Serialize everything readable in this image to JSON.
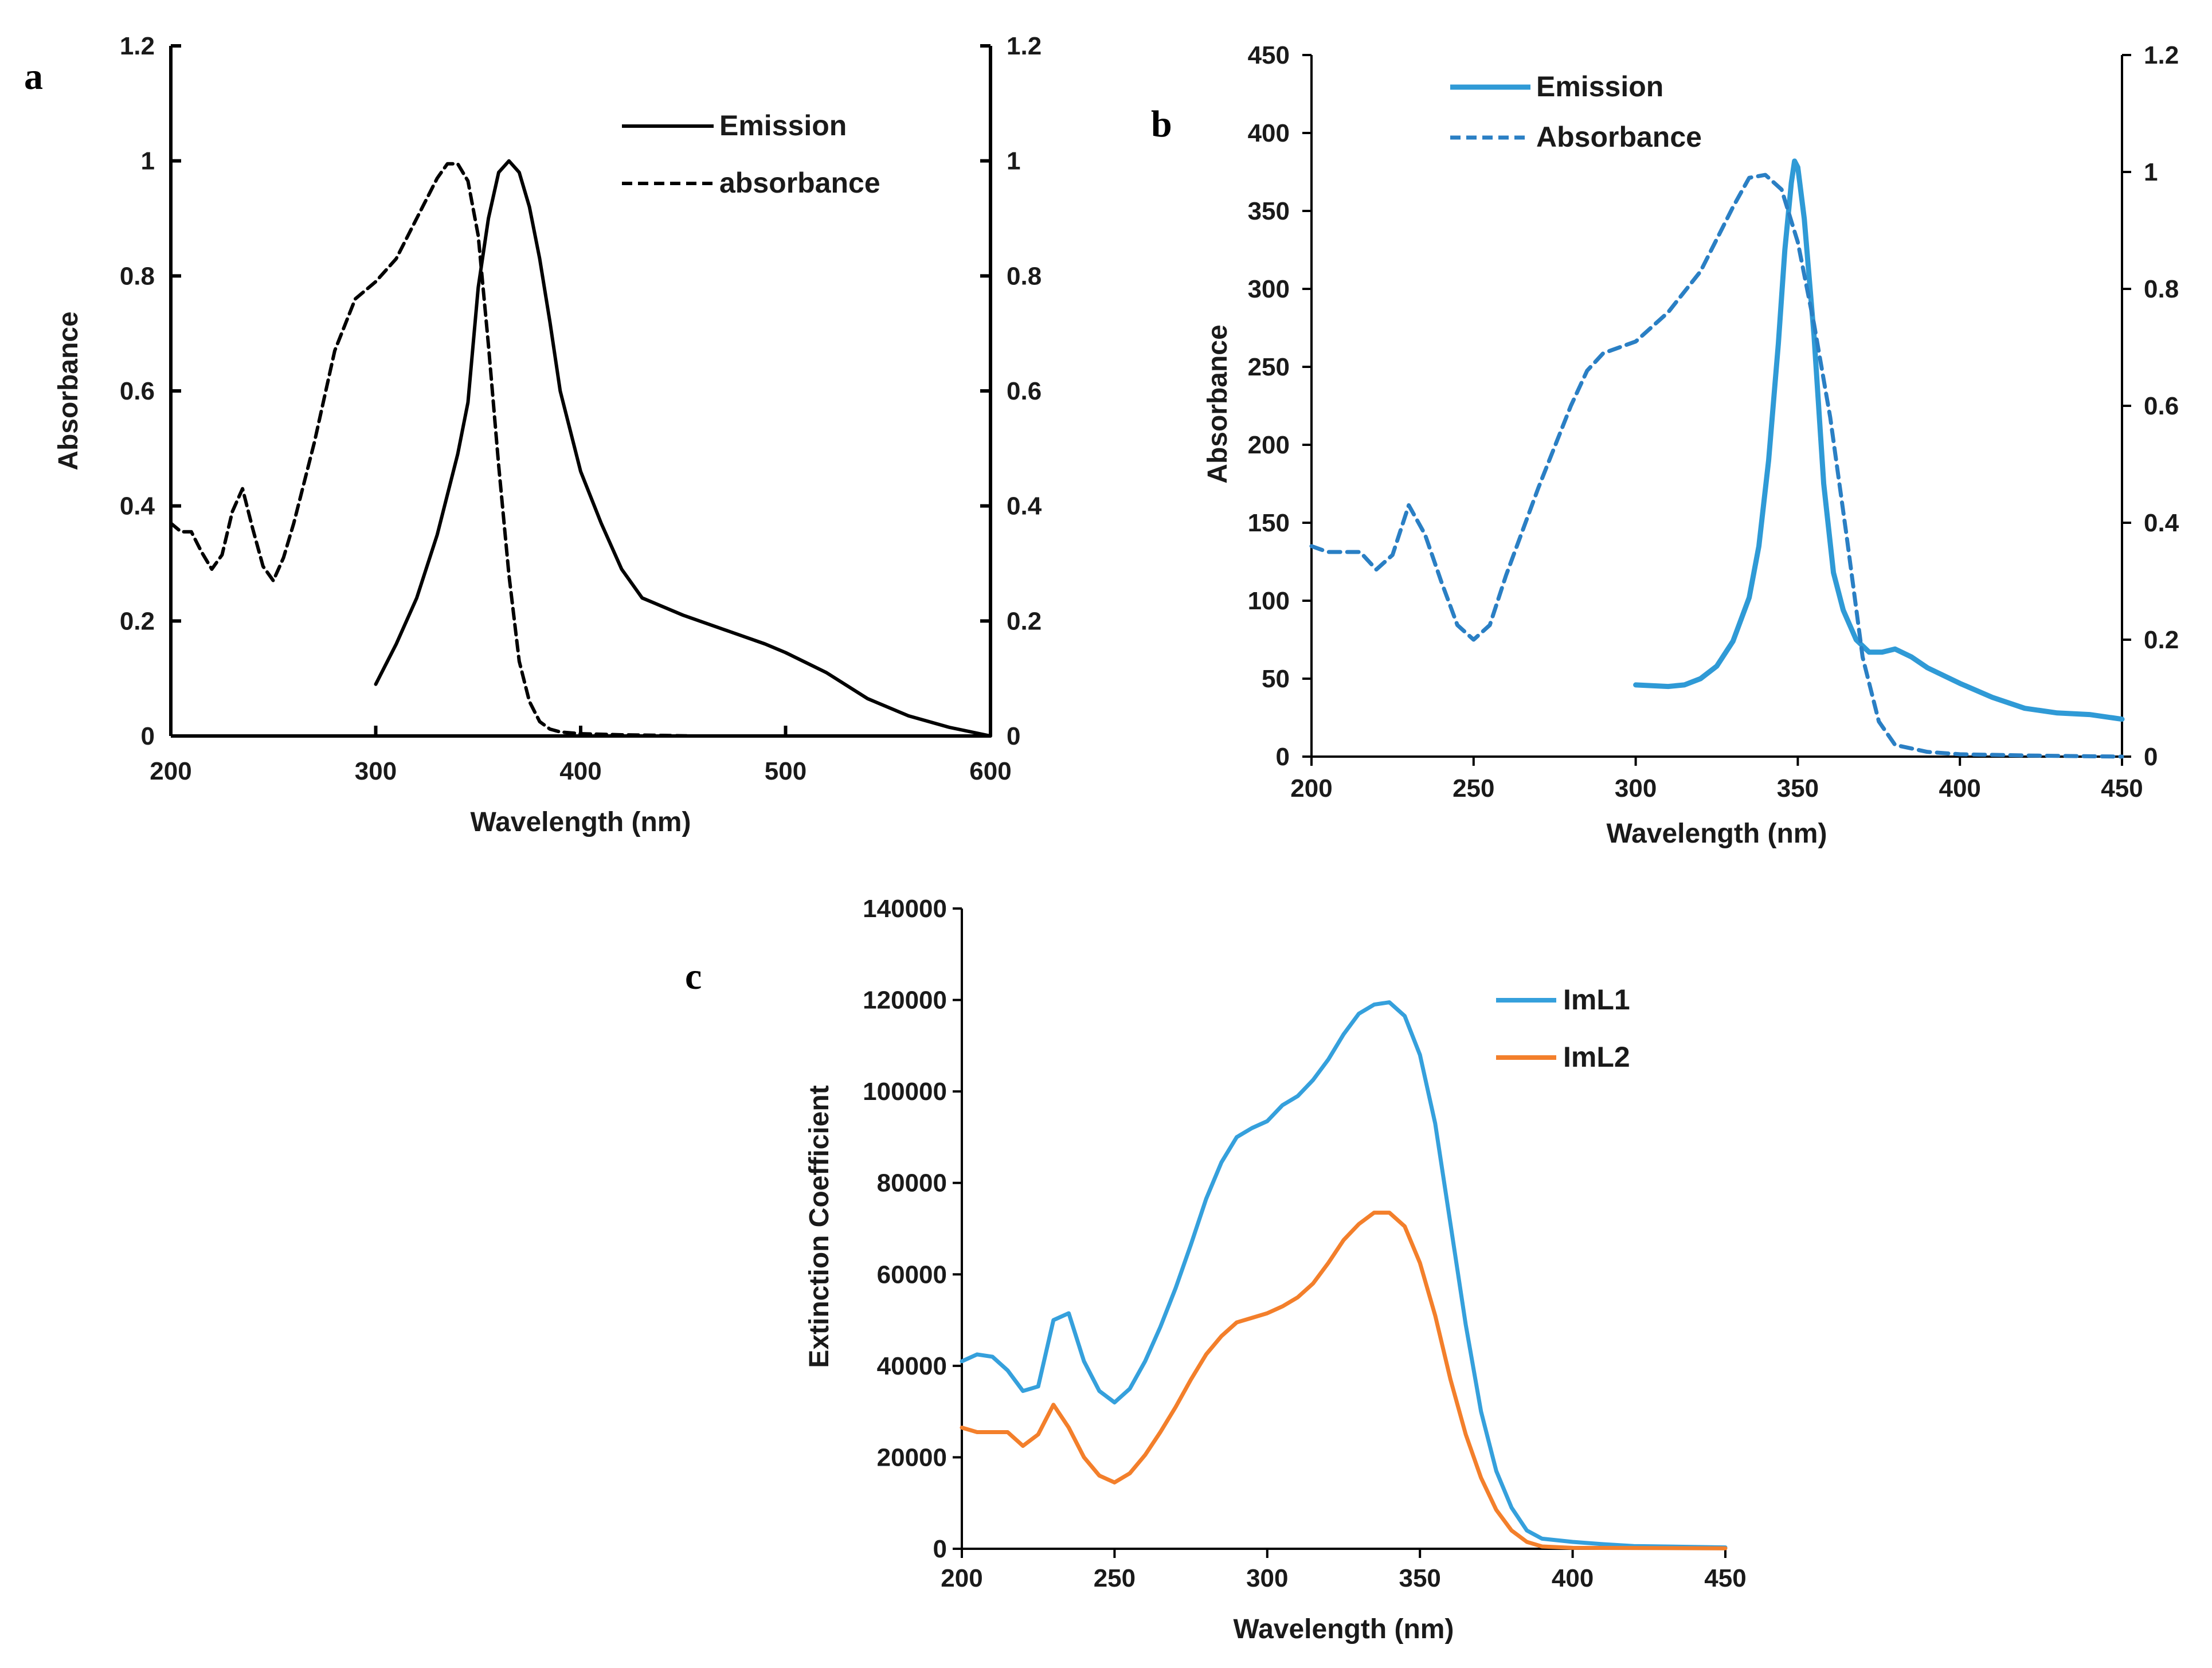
{
  "panels": [
    {
      "letter": "a"
    },
    {
      "letter": "b"
    },
    {
      "letter": "c"
    }
  ],
  "chart_data": [
    {
      "panel": "a",
      "type": "line",
      "xlabel": "Wavelength (nm)",
      "ylabel": "Absorbance",
      "xlim": [
        200,
        600
      ],
      "ylim": [
        0,
        1.2
      ],
      "y2lim": [
        0,
        1.2
      ],
      "x_ticks": [
        "200",
        "300",
        "400",
        "500",
        "600"
      ],
      "y_ticks": [
        "0",
        "0.2",
        "0.4",
        "0.6",
        "0.8",
        "1",
        "1.2"
      ],
      "y2_ticks": [
        "0",
        "0.2",
        "0.4",
        "0.6",
        "0.8",
        "1",
        "1.2"
      ],
      "legend_position": "top-right",
      "series": [
        {
          "name": "Emission",
          "color": "#000000",
          "dash": "solid",
          "points": [
            [
              300,
              0.09
            ],
            [
              310,
              0.16
            ],
            [
              320,
              0.24
            ],
            [
              330,
              0.35
            ],
            [
              340,
              0.49
            ],
            [
              345,
              0.58
            ],
            [
              350,
              0.78
            ],
            [
              355,
              0.9
            ],
            [
              360,
              0.98
            ],
            [
              365,
              1.0
            ],
            [
              370,
              0.98
            ],
            [
              375,
              0.92
            ],
            [
              380,
              0.83
            ],
            [
              385,
              0.72
            ],
            [
              390,
              0.6
            ],
            [
              400,
              0.46
            ],
            [
              410,
              0.37
            ],
            [
              420,
              0.29
            ],
            [
              430,
              0.24
            ],
            [
              450,
              0.21
            ],
            [
              470,
              0.185
            ],
            [
              490,
              0.16
            ],
            [
              500,
              0.145
            ],
            [
              520,
              0.11
            ],
            [
              540,
              0.065
            ],
            [
              560,
              0.035
            ],
            [
              580,
              0.015
            ],
            [
              600,
              0.0
            ]
          ]
        },
        {
          "name": "absorbance",
          "color": "#000000",
          "dash": "dashed",
          "points": [
            [
              200,
              0.37
            ],
            [
              205,
              0.355
            ],
            [
              210,
              0.355
            ],
            [
              215,
              0.32
            ],
            [
              220,
              0.29
            ],
            [
              225,
              0.315
            ],
            [
              230,
              0.39
            ],
            [
              235,
              0.43
            ],
            [
              240,
              0.36
            ],
            [
              245,
              0.295
            ],
            [
              250,
              0.27
            ],
            [
              255,
              0.31
            ],
            [
              260,
              0.37
            ],
            [
              270,
              0.51
            ],
            [
              280,
              0.67
            ],
            [
              290,
              0.76
            ],
            [
              300,
              0.79
            ],
            [
              310,
              0.83
            ],
            [
              320,
              0.9
            ],
            [
              330,
              0.97
            ],
            [
              335,
              0.995
            ],
            [
              340,
              0.995
            ],
            [
              345,
              0.965
            ],
            [
              350,
              0.87
            ],
            [
              355,
              0.68
            ],
            [
              360,
              0.47
            ],
            [
              365,
              0.28
            ],
            [
              370,
              0.13
            ],
            [
              375,
              0.06
            ],
            [
              380,
              0.025
            ],
            [
              385,
              0.012
            ],
            [
              390,
              0.007
            ],
            [
              400,
              0.004
            ],
            [
              420,
              0.002
            ],
            [
              440,
              0.001
            ],
            [
              455,
              0.0
            ]
          ]
        }
      ]
    },
    {
      "panel": "b",
      "type": "line",
      "xlabel": "Wavelength (nm)",
      "ylabel": "Absorbance",
      "xlim": [
        200,
        450
      ],
      "ylim": [
        0,
        450
      ],
      "y2lim": [
        0,
        1.2
      ],
      "x_ticks": [
        "200",
        "250",
        "300",
        "350",
        "400",
        "450"
      ],
      "y_ticks": [
        "0",
        "50",
        "100",
        "150",
        "200",
        "250",
        "300",
        "350",
        "400",
        "450"
      ],
      "y2_ticks": [
        "0",
        "0.2",
        "0.4",
        "0.6",
        "0.8",
        "1",
        "1.2"
      ],
      "legend_position": "top-left",
      "series": [
        {
          "name": "Emission",
          "axis": "left",
          "color": "#2f9ad6",
          "dash": "solid",
          "points": [
            [
              300,
              46
            ],
            [
              310,
              45
            ],
            [
              315,
              46
            ],
            [
              320,
              50
            ],
            [
              325,
              58
            ],
            [
              330,
              74
            ],
            [
              335,
              102
            ],
            [
              338,
              135
            ],
            [
              341,
              190
            ],
            [
              344,
              265
            ],
            [
              346,
              325
            ],
            [
              348,
              368
            ],
            [
              349,
              382
            ],
            [
              350,
              378
            ],
            [
              352,
              345
            ],
            [
              355,
              270
            ],
            [
              358,
              175
            ],
            [
              361,
              118
            ],
            [
              364,
              94
            ],
            [
              368,
              75
            ],
            [
              372,
              67
            ],
            [
              376,
              67
            ],
            [
              380,
              69
            ],
            [
              385,
              64
            ],
            [
              390,
              57
            ],
            [
              400,
              47
            ],
            [
              410,
              38
            ],
            [
              420,
              31
            ],
            [
              430,
              28
            ],
            [
              440,
              27
            ],
            [
              450,
              24
            ]
          ]
        },
        {
          "name": "Absorbance",
          "axis": "right",
          "color": "#2a7fc4",
          "dash": "dashed",
          "points": [
            [
              200,
              0.36
            ],
            [
              205,
              0.35
            ],
            [
              210,
              0.35
            ],
            [
              215,
              0.35
            ],
            [
              220,
              0.32
            ],
            [
              225,
              0.345
            ],
            [
              230,
              0.43
            ],
            [
              235,
              0.38
            ],
            [
              240,
              0.3
            ],
            [
              245,
              0.225
            ],
            [
              250,
              0.2
            ],
            [
              255,
              0.225
            ],
            [
              260,
              0.31
            ],
            [
              270,
              0.46
            ],
            [
              280,
              0.6
            ],
            [
              285,
              0.66
            ],
            [
              290,
              0.69
            ],
            [
              300,
              0.71
            ],
            [
              310,
              0.76
            ],
            [
              320,
              0.83
            ],
            [
              330,
              0.94
            ],
            [
              335,
              0.99
            ],
            [
              340,
              0.995
            ],
            [
              345,
              0.97
            ],
            [
              350,
              0.88
            ],
            [
              355,
              0.74
            ],
            [
              360,
              0.58
            ],
            [
              365,
              0.38
            ],
            [
              370,
              0.17
            ],
            [
              375,
              0.06
            ],
            [
              380,
              0.02
            ],
            [
              390,
              0.008
            ],
            [
              400,
              0.004
            ],
            [
              420,
              0.002
            ],
            [
              450,
              0.0
            ]
          ]
        }
      ]
    },
    {
      "panel": "c",
      "type": "line",
      "xlabel": "Wavelength (nm)",
      "ylabel": "Extinction Coefficient",
      "xlim": [
        200,
        450
      ],
      "ylim": [
        0,
        140000
      ],
      "x_ticks": [
        "200",
        "250",
        "300",
        "350",
        "400",
        "450"
      ],
      "y_ticks": [
        "0",
        "20000",
        "40000",
        "60000",
        "80000",
        "100000",
        "120000",
        "140000"
      ],
      "legend_position": "top-right",
      "series": [
        {
          "name": "ImL1",
          "color": "#35a0dc",
          "dash": "solid",
          "points": [
            [
              200,
              41000
            ],
            [
              205,
              42500
            ],
            [
              210,
              42000
            ],
            [
              215,
              39000
            ],
            [
              220,
              34500
            ],
            [
              225,
              35500
            ],
            [
              230,
              50000
            ],
            [
              235,
              51500
            ],
            [
              240,
              41000
            ],
            [
              245,
              34500
            ],
            [
              250,
              32000
            ],
            [
              255,
              35000
            ],
            [
              260,
              41000
            ],
            [
              265,
              48500
            ],
            [
              270,
              57000
            ],
            [
              275,
              66500
            ],
            [
              280,
              76500
            ],
            [
              285,
              84500
            ],
            [
              290,
              90000
            ],
            [
              295,
              92000
            ],
            [
              300,
              93500
            ],
            [
              305,
              97000
            ],
            [
              310,
              99000
            ],
            [
              315,
              102500
            ],
            [
              320,
              107000
            ],
            [
              325,
              112500
            ],
            [
              330,
              117000
            ],
            [
              335,
              119000
            ],
            [
              340,
              119500
            ],
            [
              345,
              116500
            ],
            [
              350,
              108000
            ],
            [
              355,
              93000
            ],
            [
              360,
              71000
            ],
            [
              365,
              49000
            ],
            [
              370,
              30000
            ],
            [
              375,
              17000
            ],
            [
              380,
              9000
            ],
            [
              385,
              4000
            ],
            [
              390,
              2200
            ],
            [
              400,
              1500
            ],
            [
              410,
              1000
            ],
            [
              420,
              600
            ],
            [
              450,
              300
            ]
          ]
        },
        {
          "name": "ImL2",
          "color": "#f37f2b",
          "dash": "solid",
          "points": [
            [
              200,
              26500
            ],
            [
              205,
              25500
            ],
            [
              210,
              25500
            ],
            [
              215,
              25500
            ],
            [
              220,
              22500
            ],
            [
              225,
              25000
            ],
            [
              230,
              31500
            ],
            [
              235,
              26500
            ],
            [
              240,
              20000
            ],
            [
              245,
              16000
            ],
            [
              250,
              14500
            ],
            [
              255,
              16500
            ],
            [
              260,
              20500
            ],
            [
              265,
              25500
            ],
            [
              270,
              31000
            ],
            [
              275,
              37000
            ],
            [
              280,
              42500
            ],
            [
              285,
              46500
            ],
            [
              290,
              49500
            ],
            [
              295,
              50500
            ],
            [
              300,
              51500
            ],
            [
              305,
              53000
            ],
            [
              310,
              55000
            ],
            [
              315,
              58000
            ],
            [
              320,
              62500
            ],
            [
              325,
              67500
            ],
            [
              330,
              71000
            ],
            [
              335,
              73500
            ],
            [
              340,
              73500
            ],
            [
              345,
              70500
            ],
            [
              350,
              62500
            ],
            [
              355,
              51000
            ],
            [
              360,
              37000
            ],
            [
              365,
              25000
            ],
            [
              370,
              15500
            ],
            [
              375,
              8500
            ],
            [
              380,
              4000
            ],
            [
              385,
              1500
            ],
            [
              390,
              500
            ],
            [
              400,
              200
            ],
            [
              450,
              100
            ]
          ]
        }
      ]
    }
  ]
}
